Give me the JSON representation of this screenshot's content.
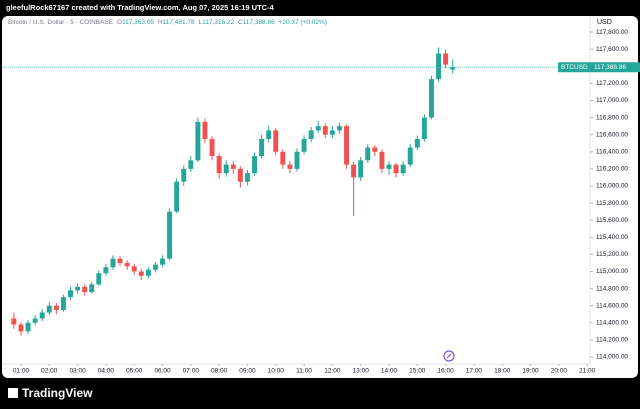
{
  "header": {
    "text": "gleefulRock67167 created with TradingView.com, Aug 07, 2025 16:19 UTC-4"
  },
  "footer": {
    "brand": "TradingView"
  },
  "chart_data": {
    "type": "candlestick",
    "legend": {
      "symbol": "Bitcoin / U.S. Dollar · 5 · COINBASE",
      "open_key": "O",
      "open": "117,363.05",
      "high_key": "H",
      "high": "117,481.78",
      "low_key": "L",
      "low": "117,316.22",
      "close_key": "C",
      "close": "117,388.86",
      "change": "+20.37 (+0.02%)"
    },
    "currency": "USD",
    "last_price": {
      "symbol": "BTCUSD",
      "value": 117388.86,
      "label": "117,388.86"
    },
    "up_color": "#26a69a",
    "down_color": "#ef5350",
    "grid": false,
    "x": [
      0.75,
      1,
      1.25,
      1.5,
      1.75,
      2,
      2.25,
      2.5,
      2.75,
      3,
      3.25,
      3.5,
      3.75,
      4,
      4.25,
      4.5,
      4.75,
      5,
      5.25,
      5.5,
      5.75,
      6,
      6.25,
      6.5,
      6.75,
      7,
      7.25,
      7.5,
      7.75,
      8,
      8.25,
      8.5,
      8.75,
      9,
      9.25,
      9.5,
      9.75,
      10,
      10.25,
      10.5,
      10.75,
      11,
      11.25,
      11.5,
      11.75,
      12,
      12.25,
      12.5,
      12.75,
      13,
      13.25,
      13.5,
      13.75,
      14,
      14.25,
      14.5,
      14.75,
      15,
      15.25,
      15.5,
      15.75,
      16,
      16.25
    ],
    "open": [
      114450,
      114380,
      114300,
      114400,
      114450,
      114520,
      114600,
      114550,
      114700,
      114780,
      114820,
      114760,
      114850,
      114980,
      115050,
      115150,
      115100,
      115060,
      115000,
      114950,
      115020,
      115080,
      115150,
      115700,
      116050,
      116200,
      116300,
      116750,
      116550,
      116350,
      116150,
      116250,
      116200,
      116050,
      116150,
      116350,
      116550,
      116650,
      116400,
      116250,
      116200,
      116400,
      116550,
      116650,
      116700,
      116600,
      116650,
      116700,
      116250,
      116100,
      116300,
      116450,
      116400,
      116200,
      116250,
      116150,
      116250,
      116450,
      116550,
      116800,
      117250,
      117550,
      117363.05
    ],
    "high": [
      114520,
      114410,
      114430,
      114490,
      114560,
      114640,
      114630,
      114730,
      114820,
      114860,
      114850,
      114880,
      115010,
      115090,
      115190,
      115180,
      115130,
      115090,
      115030,
      115050,
      115110,
      115190,
      115740,
      116090,
      116240,
      116350,
      116800,
      116790,
      116580,
      116380,
      116300,
      116290,
      116230,
      116190,
      116390,
      116600,
      116700,
      116680,
      116430,
      116290,
      116440,
      116590,
      116690,
      116760,
      116730,
      116700,
      116740,
      116720,
      116280,
      116340,
      116490,
      116480,
      116430,
      116290,
      116270,
      116290,
      116490,
      116590,
      116840,
      117290,
      117620,
      117600,
      117481.78
    ],
    "low": [
      114330,
      114250,
      114270,
      114370,
      114420,
      114490,
      114500,
      114530,
      114670,
      114740,
      114720,
      114740,
      114830,
      114950,
      115020,
      115060,
      115020,
      114960,
      114900,
      114920,
      114990,
      115050,
      115130,
      115680,
      116000,
      116160,
      116280,
      116500,
      116300,
      116080,
      116110,
      116140,
      115980,
      116010,
      116120,
      116320,
      116510,
      116360,
      116200,
      116150,
      116170,
      116370,
      116510,
      116620,
      116560,
      116560,
      116610,
      116200,
      115650,
      116060,
      116270,
      116350,
      116150,
      116130,
      116100,
      116120,
      116220,
      116420,
      116520,
      116780,
      117220,
      117380,
      117316.22
    ],
    "close": [
      114380,
      114300,
      114400,
      114450,
      114520,
      114600,
      114550,
      114700,
      114780,
      114820,
      114760,
      114850,
      114980,
      115050,
      115150,
      115100,
      115060,
      115000,
      114950,
      115020,
      115080,
      115150,
      115700,
      116050,
      116200,
      116300,
      116750,
      116550,
      116350,
      116150,
      116250,
      116200,
      116050,
      116150,
      116350,
      116550,
      116650,
      116400,
      116250,
      116200,
      116400,
      116550,
      116650,
      116700,
      116600,
      116650,
      116700,
      116250,
      116100,
      116300,
      116450,
      116400,
      116200,
      116250,
      116150,
      116250,
      116450,
      116550,
      116800,
      117250,
      117550,
      117420,
      117388.86
    ],
    "xlim": [
      0.33,
      21.1
    ],
    "xticks": [
      {
        "value": 1,
        "label": "01:00"
      },
      {
        "value": 2,
        "label": "02:00"
      },
      {
        "value": 3,
        "label": "03:00"
      },
      {
        "value": 4,
        "label": "04:00"
      },
      {
        "value": 5,
        "label": "05:00"
      },
      {
        "value": 6,
        "label": "06:00"
      },
      {
        "value": 7,
        "label": "07:00"
      },
      {
        "value": 8,
        "label": "08:00"
      },
      {
        "value": 9,
        "label": "09:00"
      },
      {
        "value": 10,
        "label": "10:00"
      },
      {
        "value": 11,
        "label": "11:00"
      },
      {
        "value": 12,
        "label": "12:00"
      },
      {
        "value": 13,
        "label": "13:00"
      },
      {
        "value": 14,
        "label": "14:00"
      },
      {
        "value": 15,
        "label": "15:00"
      },
      {
        "value": 16,
        "label": "16:00"
      },
      {
        "value": 17,
        "label": "17:00"
      },
      {
        "value": 18,
        "label": "18:00"
      },
      {
        "value": 19,
        "label": "19:00"
      },
      {
        "value": 20,
        "label": "20:00"
      },
      {
        "value": 21,
        "label": "21:00"
      }
    ],
    "ylim": [
      113918,
      117988
    ],
    "yticks": [
      {
        "value": 114000,
        "label": "114,000.00"
      },
      {
        "value": 114200,
        "label": "114,200.00"
      },
      {
        "value": 114400,
        "label": "114,400.00"
      },
      {
        "value": 114600,
        "label": "114,600.00"
      },
      {
        "value": 114800,
        "label": "114,800.00"
      },
      {
        "value": 115000,
        "label": "115,000.00"
      },
      {
        "value": 115200,
        "label": "115,200.00"
      },
      {
        "value": 115400,
        "label": "115,400.00"
      },
      {
        "value": 115600,
        "label": "115,600.00"
      },
      {
        "value": 115800,
        "label": "115,800.00"
      },
      {
        "value": 116000,
        "label": "116,000.00"
      },
      {
        "value": 116200,
        "label": "116,200.00"
      },
      {
        "value": 116400,
        "label": "116,400.00"
      },
      {
        "value": 116600,
        "label": "116,600.00"
      },
      {
        "value": 116800,
        "label": "116,800.00"
      },
      {
        "value": 117000,
        "label": "117,000.00"
      },
      {
        "value": 117200,
        "label": "117,200.00"
      },
      {
        "value": 117400,
        "label": "117,400.00"
      },
      {
        "value": 117600,
        "label": "117,600.00"
      },
      {
        "value": 117800,
        "label": "117,800.00"
      }
    ]
  }
}
